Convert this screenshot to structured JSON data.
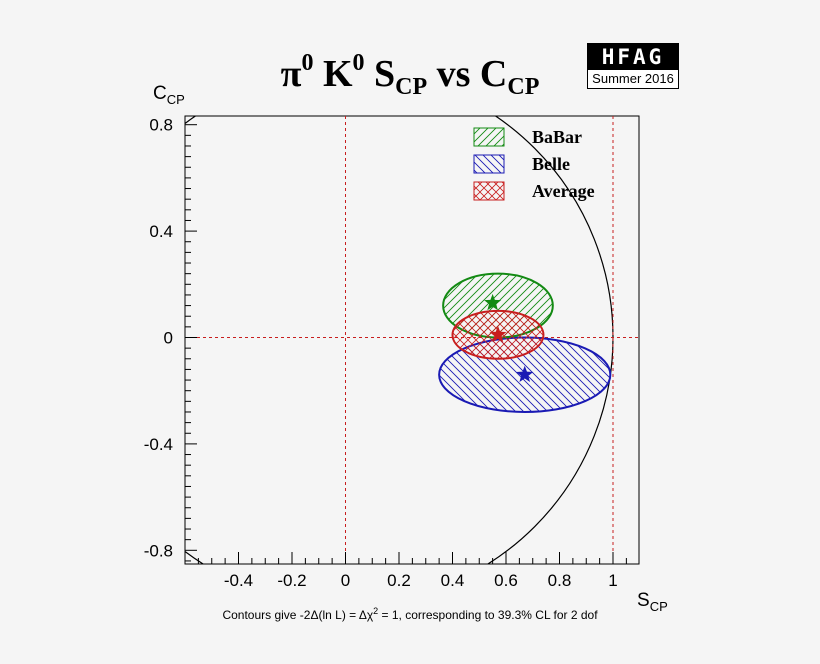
{
  "chart_data": {
    "type": "scatter",
    "title": {
      "main": "π",
      "sup1": "0",
      "mid": " K",
      "sup2": "0",
      "s": " S",
      "sub1": "CP",
      "vs": " vs C",
      "sub2": "CP"
    },
    "xlabel": {
      "base": "S",
      "sub": "CP"
    },
    "ylabel": {
      "base": "C",
      "sub": "CP"
    },
    "xlim": [
      -0.6,
      1.1
    ],
    "ylim": [
      -0.85,
      0.85
    ],
    "x_ticks": [
      -0.4,
      -0.2,
      0,
      0.2,
      0.4,
      0.6,
      0.8,
      1
    ],
    "x_tick_labels": [
      "-0.4",
      "-0.2",
      "0",
      "0.2",
      "0.4",
      "0.6",
      "0.8",
      "1"
    ],
    "y_ticks": [
      0.8,
      0.4,
      0,
      -0.4,
      -0.8
    ],
    "y_tick_labels": [
      "0.8",
      "0.4",
      "0",
      "-0.4",
      "-0.8"
    ],
    "unit_circle": {
      "radius": 1
    },
    "reference_lines": {
      "x": [
        0,
        1
      ],
      "y": [
        0
      ]
    },
    "series": [
      {
        "name": "BaBar",
        "color": "#138a13",
        "center": [
          0.55,
          0.13
        ],
        "ellipse": {
          "cx": 0.57,
          "cy": 0.12,
          "rx": 0.205,
          "ry": 0.12
        },
        "hatch": "diag-left"
      },
      {
        "name": "Belle",
        "color": "#1a1ab4",
        "center": [
          0.67,
          -0.14
        ],
        "ellipse": {
          "cx": 0.67,
          "cy": -0.14,
          "rx": 0.32,
          "ry": 0.14
        },
        "hatch": "diag-right"
      },
      {
        "name": "Average",
        "color": "#c81e1e",
        "center": [
          0.57,
          0.01
        ],
        "ellipse": {
          "cx": 0.57,
          "cy": 0.01,
          "rx": 0.17,
          "ry": 0.09
        },
        "hatch": "cross"
      }
    ],
    "legend": {
      "position": "top-right"
    }
  },
  "logo": {
    "top": "HFAG",
    "bottom": "Summer 2016"
  },
  "footnote": {
    "part1": "Contours give -2Δ(ln L) = Δχ",
    "sup": "2",
    "part2": " = 1, corresponding to 39.3% CL for 2 dof"
  }
}
